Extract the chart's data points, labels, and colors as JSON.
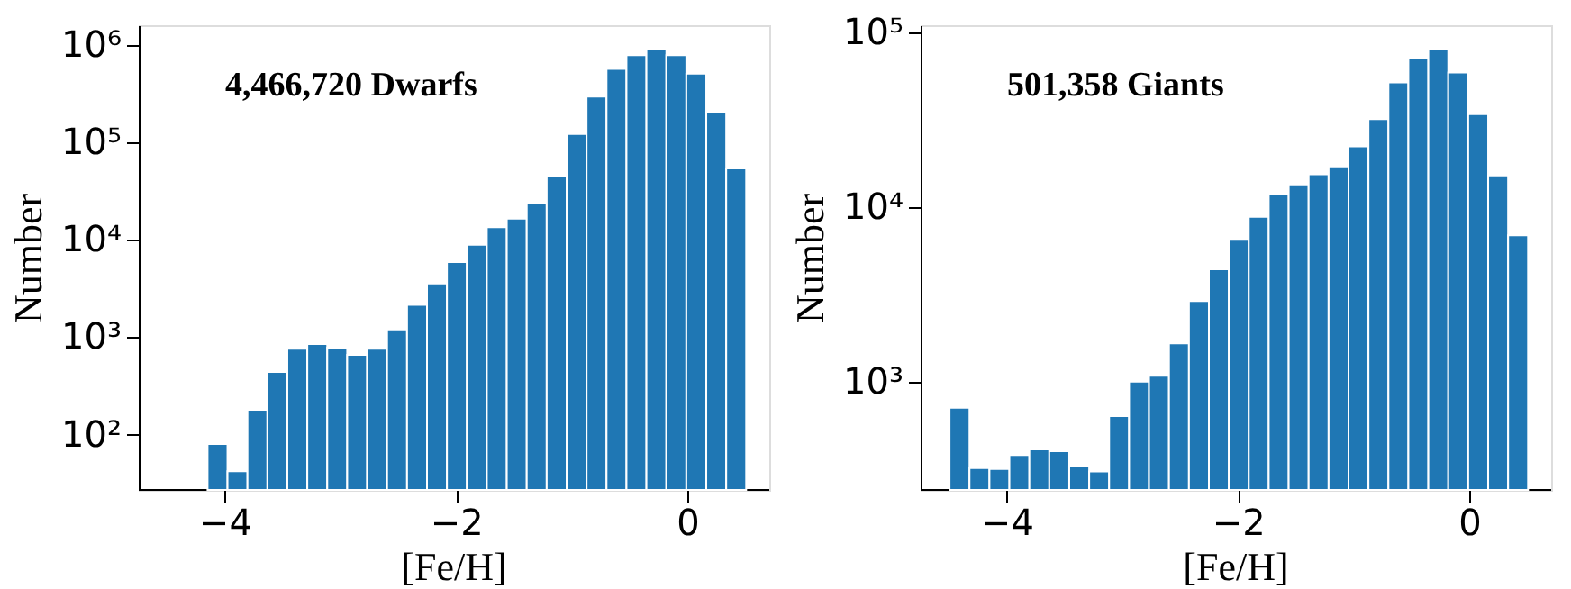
{
  "chart_data": [
    {
      "type": "histogram",
      "xlabel": "[Fe/H]",
      "ylabel": "Number",
      "annotations": [
        "4,466,720 Dwarfs"
      ],
      "color": "#1f77b4",
      "log": "y",
      "grid": false,
      "legend": false,
      "bins": [
        -4.5,
        -4.3276,
        -4.1552,
        -3.9828,
        -3.8103,
        -3.6379,
        -3.4655,
        -3.2931,
        -3.1207,
        -2.9483,
        -2.7759,
        -2.6034,
        -2.431,
        -2.2586,
        -2.0862,
        -1.9138,
        -1.7414,
        -1.569,
        -1.3966,
        -1.2241,
        -1.0517,
        -0.8793,
        -0.7069,
        -0.5345,
        -0.3621,
        -0.1897,
        -0.0172,
        0.1552,
        0.3276,
        0.5
      ],
      "values": [
        null,
        null,
        80,
        42,
        180,
        440,
        760,
        850,
        780,
        660,
        760,
        1200,
        2150,
        3560,
        5900,
        8900,
        13500,
        16500,
        24000,
        45000,
        122000,
        296000,
        570000,
        790000,
        920000,
        790000,
        510000,
        203000,
        54000
      ],
      "xlim": [
        -4.75,
        0.7
      ],
      "xticks": [
        -4,
        -2,
        0
      ],
      "ylim": [
        27,
        1600000
      ],
      "yticks": [
        {
          "value": 100,
          "label": "10²"
        },
        {
          "value": 1000,
          "label": "10³"
        },
        {
          "value": 10000,
          "label": "10⁴"
        },
        {
          "value": 100000,
          "label": "10⁵"
        },
        {
          "value": 1000000,
          "label": "10⁶"
        }
      ]
    },
    {
      "type": "histogram",
      "xlabel": "[Fe/H]",
      "ylabel": "Number",
      "annotations": [
        "501,358 Giants"
      ],
      "color": "#1f77b4",
      "log": "y",
      "grid": false,
      "legend": false,
      "bins": [
        -4.5,
        -4.3276,
        -4.1552,
        -3.9828,
        -3.8103,
        -3.6379,
        -3.4655,
        -3.2931,
        -3.1207,
        -2.9483,
        -2.7759,
        -2.6034,
        -2.431,
        -2.2586,
        -2.0862,
        -1.9138,
        -1.7414,
        -1.569,
        -1.3966,
        -1.2241,
        -1.0517,
        -0.8793,
        -0.7069,
        -0.5345,
        -0.3621,
        -0.1897,
        -0.0172,
        0.1552,
        0.3276,
        0.5
      ],
      "values": [
        710,
        320,
        316,
        380,
        410,
        400,
        330,
        306,
        635,
        1000,
        1080,
        1660,
        2900,
        4400,
        6500,
        8800,
        11800,
        13500,
        15400,
        17100,
        22300,
        31900,
        51800,
        71000,
        80000,
        59000,
        34000,
        15200,
        6900
      ],
      "xlim": [
        -4.75,
        0.7
      ],
      "xticks": [
        -4,
        -2,
        0
      ],
      "ylim": [
        240,
        110000
      ],
      "yticks": [
        {
          "value": 1000,
          "label": "10³"
        },
        {
          "value": 10000,
          "label": "10⁴"
        },
        {
          "value": 100000,
          "label": "10⁵"
        }
      ]
    }
  ]
}
